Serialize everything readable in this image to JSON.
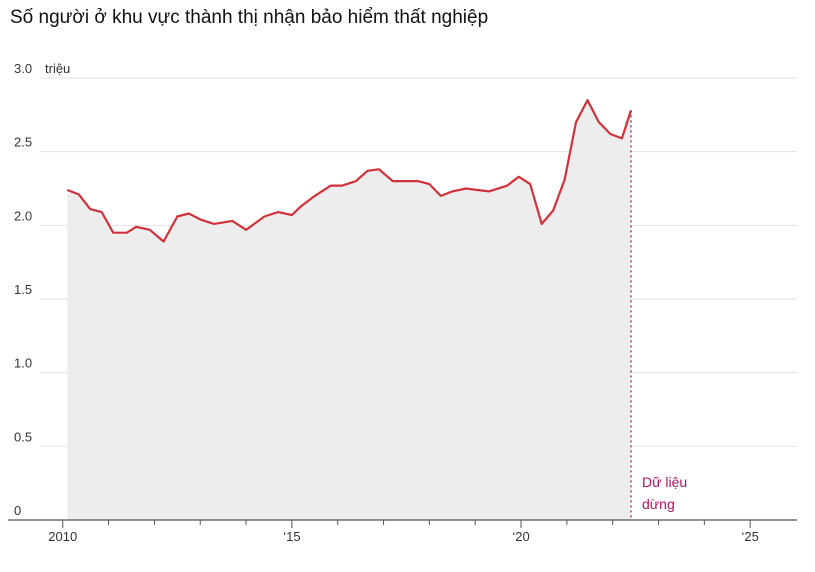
{
  "chart_data": {
    "type": "area",
    "title": "Số người ở khu vực thành thị nhận bảo hiểm thất nghiệp",
    "unit_label": "triệu",
    "y_ticks": [
      {
        "v": 3.0,
        "label": "3.0"
      },
      {
        "v": 2.5,
        "label": "2.5"
      },
      {
        "v": 2.0,
        "label": "2.0"
      },
      {
        "v": 1.5,
        "label": "1.5"
      },
      {
        "v": 1.0,
        "label": "1.0"
      },
      {
        "v": 0.5,
        "label": "0.5"
      },
      {
        "v": 0,
        "label": "0"
      }
    ],
    "x_ticks": [
      {
        "v": 2010,
        "label": "2010"
      },
      {
        "v": 2015,
        "label": "‘15"
      },
      {
        "v": 2020,
        "label": "‘20"
      },
      {
        "v": 2025,
        "label": "‘25"
      }
    ],
    "xlim": [
      2009.7,
      2026.0
    ],
    "ylim": [
      0,
      3.0
    ],
    "grid": true,
    "series": [
      {
        "color": "#d0323b",
        "fill": "#ededee",
        "x": [
          2010.1,
          2010.35,
          2010.6,
          2010.85,
          2011.1,
          2011.4,
          2011.6,
          2011.9,
          2012.2,
          2012.5,
          2012.75,
          2013.0,
          2013.3,
          2013.7,
          2014.0,
          2014.4,
          2014.7,
          2015.0,
          2015.2,
          2015.5,
          2015.85,
          2016.1,
          2016.4,
          2016.65,
          2016.9,
          2017.2,
          2017.5,
          2017.75,
          2018.0,
          2018.25,
          2018.5,
          2018.8,
          2019.05,
          2019.3,
          2019.7,
          2019.95,
          2020.2,
          2020.45,
          2020.7,
          2020.95,
          2021.2,
          2021.45,
          2021.7,
          2021.95,
          2022.2,
          2022.4
        ],
        "y": [
          2.24,
          2.21,
          2.11,
          2.09,
          1.95,
          1.95,
          1.99,
          1.97,
          1.89,
          2.06,
          2.08,
          2.04,
          2.01,
          2.03,
          1.97,
          2.06,
          2.09,
          2.07,
          2.13,
          2.2,
          2.27,
          2.27,
          2.3,
          2.37,
          2.38,
          2.3,
          2.3,
          2.3,
          2.28,
          2.2,
          2.23,
          2.25,
          2.24,
          2.23,
          2.27,
          2.33,
          2.28,
          2.01,
          2.1,
          2.31,
          2.7,
          2.85,
          2.7,
          2.62,
          2.59,
          2.78
        ]
      }
    ],
    "data_end_x": 2022.4,
    "annotation": {
      "line1": "Dữ liệu",
      "line2": "dừng",
      "color": "#b0145f"
    }
  }
}
